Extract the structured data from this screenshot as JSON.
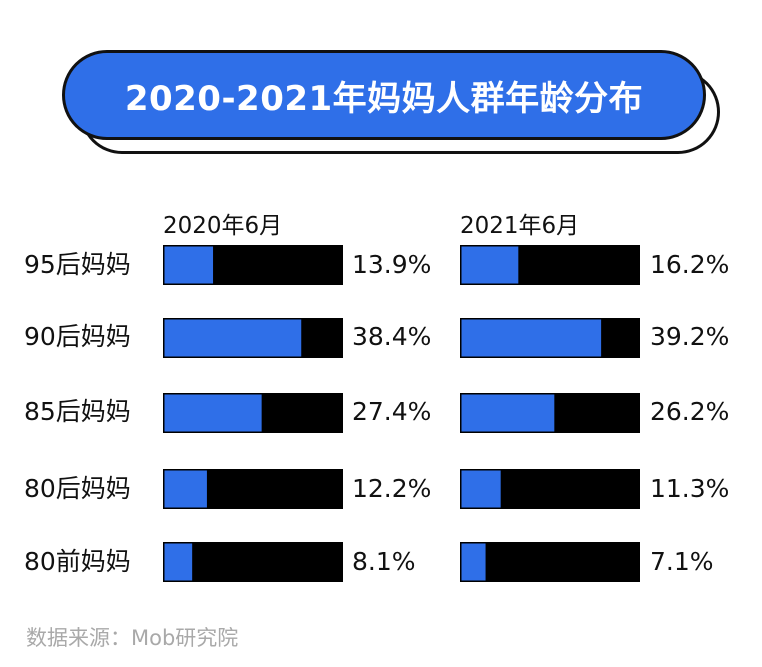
{
  "title": "2020-2021年妈妈人群年龄分布",
  "source": "数据来源：Mob研究院",
  "colors": {
    "fill": "#2f6fe8",
    "track": "#000000",
    "title_bg": "#2f6fe8"
  },
  "chart_data": {
    "type": "bar",
    "title": "2020-2021年妈妈人群年龄分布",
    "categories": [
      "95后妈妈",
      "90后妈妈",
      "85后妈妈",
      "80后妈妈",
      "80前妈妈"
    ],
    "series": [
      {
        "name": "2020年6月",
        "values": [
          13.9,
          38.4,
          27.4,
          12.2,
          8.1
        ],
        "labels": [
          "13.9%",
          "38.4%",
          "27.4%",
          "12.2%",
          "8.1%"
        ]
      },
      {
        "name": "2021年6月",
        "values": [
          16.2,
          39.2,
          26.2,
          11.3,
          7.1
        ],
        "labels": [
          "16.2%",
          "39.2%",
          "26.2%",
          "11.3%",
          "7.1%"
        ]
      }
    ],
    "xlim": [
      0,
      50
    ],
    "ylabel": "",
    "xlabel": "",
    "grid": false,
    "orientation": "horizontal"
  }
}
